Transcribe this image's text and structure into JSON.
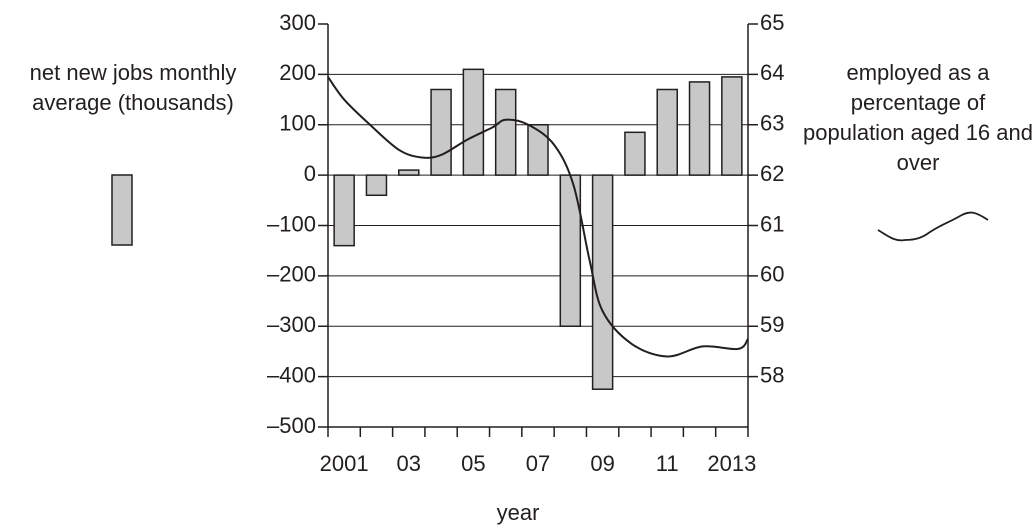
{
  "chart_data": {
    "type": "bar",
    "x_label": "year",
    "categories": [
      "2001",
      null,
      "03",
      null,
      "05",
      null,
      "07",
      null,
      "09",
      null,
      "11",
      null,
      "2013"
    ],
    "series": [
      {
        "name": "net new jobs monthly average (thousands)",
        "type": "bar",
        "color": "#c8c8c8",
        "values": [
          -140,
          -40,
          10,
          170,
          210,
          170,
          100,
          -300,
          -425,
          85,
          170,
          185,
          195
        ]
      },
      {
        "name": "employed as a percentage of population aged 16 and over",
        "type": "line",
        "axis": "y2",
        "color": "#231f20",
        "x": [
          2000.5,
          2001.0,
          2001.8,
          2002.7,
          2003.4,
          2004.0,
          2004.8,
          2005.6,
          2006.0,
          2006.7,
          2007.5,
          2008.1,
          2008.6,
          2009.0,
          2009.9,
          2011.0,
          2012.1,
          2013.2,
          2013.5
        ],
        "values": [
          63.95,
          63.5,
          63.0,
          62.5,
          62.35,
          62.4,
          62.7,
          62.95,
          63.1,
          63.0,
          62.6,
          61.8,
          60.3,
          59.3,
          58.65,
          58.4,
          58.6,
          58.55,
          58.75
        ]
      }
    ],
    "xlim": [
      2000.5,
      2013.5
    ],
    "ylim": [
      -500,
      300
    ],
    "yticks": [
      {
        "value": -500,
        "label": "–500"
      },
      {
        "value": -400,
        "label": "–400"
      },
      {
        "value": -300,
        "label": "–300"
      },
      {
        "value": -200,
        "label": "–200"
      },
      {
        "value": -100,
        "label": "–100"
      },
      0,
      100,
      200,
      300
    ],
    "y2lim": [
      57,
      65
    ],
    "y2ticks": [
      58,
      59,
      60,
      61,
      62,
      63,
      64,
      65
    ],
    "grid": true
  }
}
